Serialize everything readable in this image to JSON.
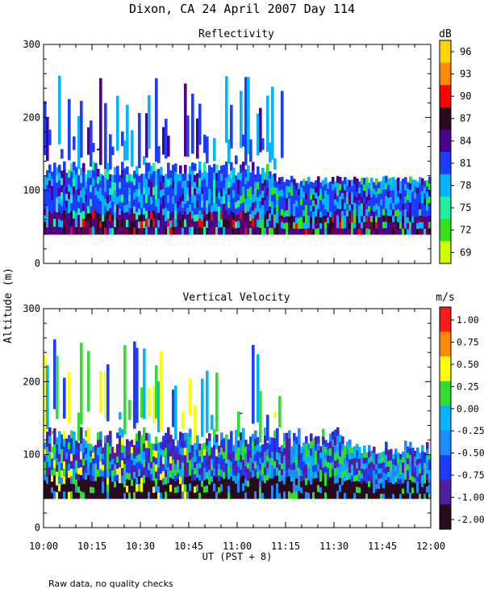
{
  "title": "Dixon, CA 24 April 2007  Day 114",
  "footer_note": "Raw data, no quality checks",
  "chart_data": [
    {
      "type": "heatmap",
      "title": "Reflectivity",
      "ylabel": "Altitude (m)",
      "xlabel": "UT  (PST + 8)",
      "xlim": [
        "10:00",
        "12:00"
      ],
      "x_tick_labels": [
        "10:00",
        "10:15",
        "10:30",
        "10:45",
        "11:00",
        "11:15",
        "11:30",
        "11:45",
        "12:00"
      ],
      "ylim": [
        0,
        300
      ],
      "y_tick_labels": [
        "0",
        "100",
        "200",
        "300"
      ],
      "colorbar": {
        "unit": "dB",
        "labels": [
          "96",
          "93",
          "90",
          "87",
          "84",
          "81",
          "78",
          "75",
          "72",
          "69"
        ],
        "colors": [
          "#ffd700",
          "#ff8c00",
          "#ff0000",
          "#2a0a1e",
          "#4b0090",
          "#1e3cff",
          "#00b4ff",
          "#20f0a0",
          "#33e31a",
          "#ccff00"
        ]
      },
      "echo_base_m": 40,
      "echo_top_m": 260
    },
    {
      "type": "heatmap",
      "title": "Vertical Velocity",
      "ylabel": "Altitude (m)",
      "xlabel": "UT  (PST + 8)",
      "xlim": [
        "10:00",
        "12:00"
      ],
      "x_tick_labels": [
        "10:00",
        "10:15",
        "10:30",
        "10:45",
        "11:00",
        "11:15",
        "11:30",
        "11:45",
        "12:00"
      ],
      "ylim": [
        0,
        300
      ],
      "y_tick_labels": [
        "0",
        "100",
        "200",
        "300"
      ],
      "colorbar": {
        "unit": "m/s",
        "labels": [
          "1.00",
          "0.75",
          "0.50",
          "0.25",
          "0.00",
          "-0.25",
          "-0.50",
          "-0.75",
          "-1.00",
          "-2.00"
        ],
        "colors": [
          "#ff1a1a",
          "#ff8c00",
          "#ffff00",
          "#32dd32",
          "#00b4ff",
          "#1e8cff",
          "#1e3cff",
          "#5020a0",
          "#2a0a1e"
        ]
      },
      "echo_base_m": 40,
      "echo_top_m": 260
    }
  ]
}
